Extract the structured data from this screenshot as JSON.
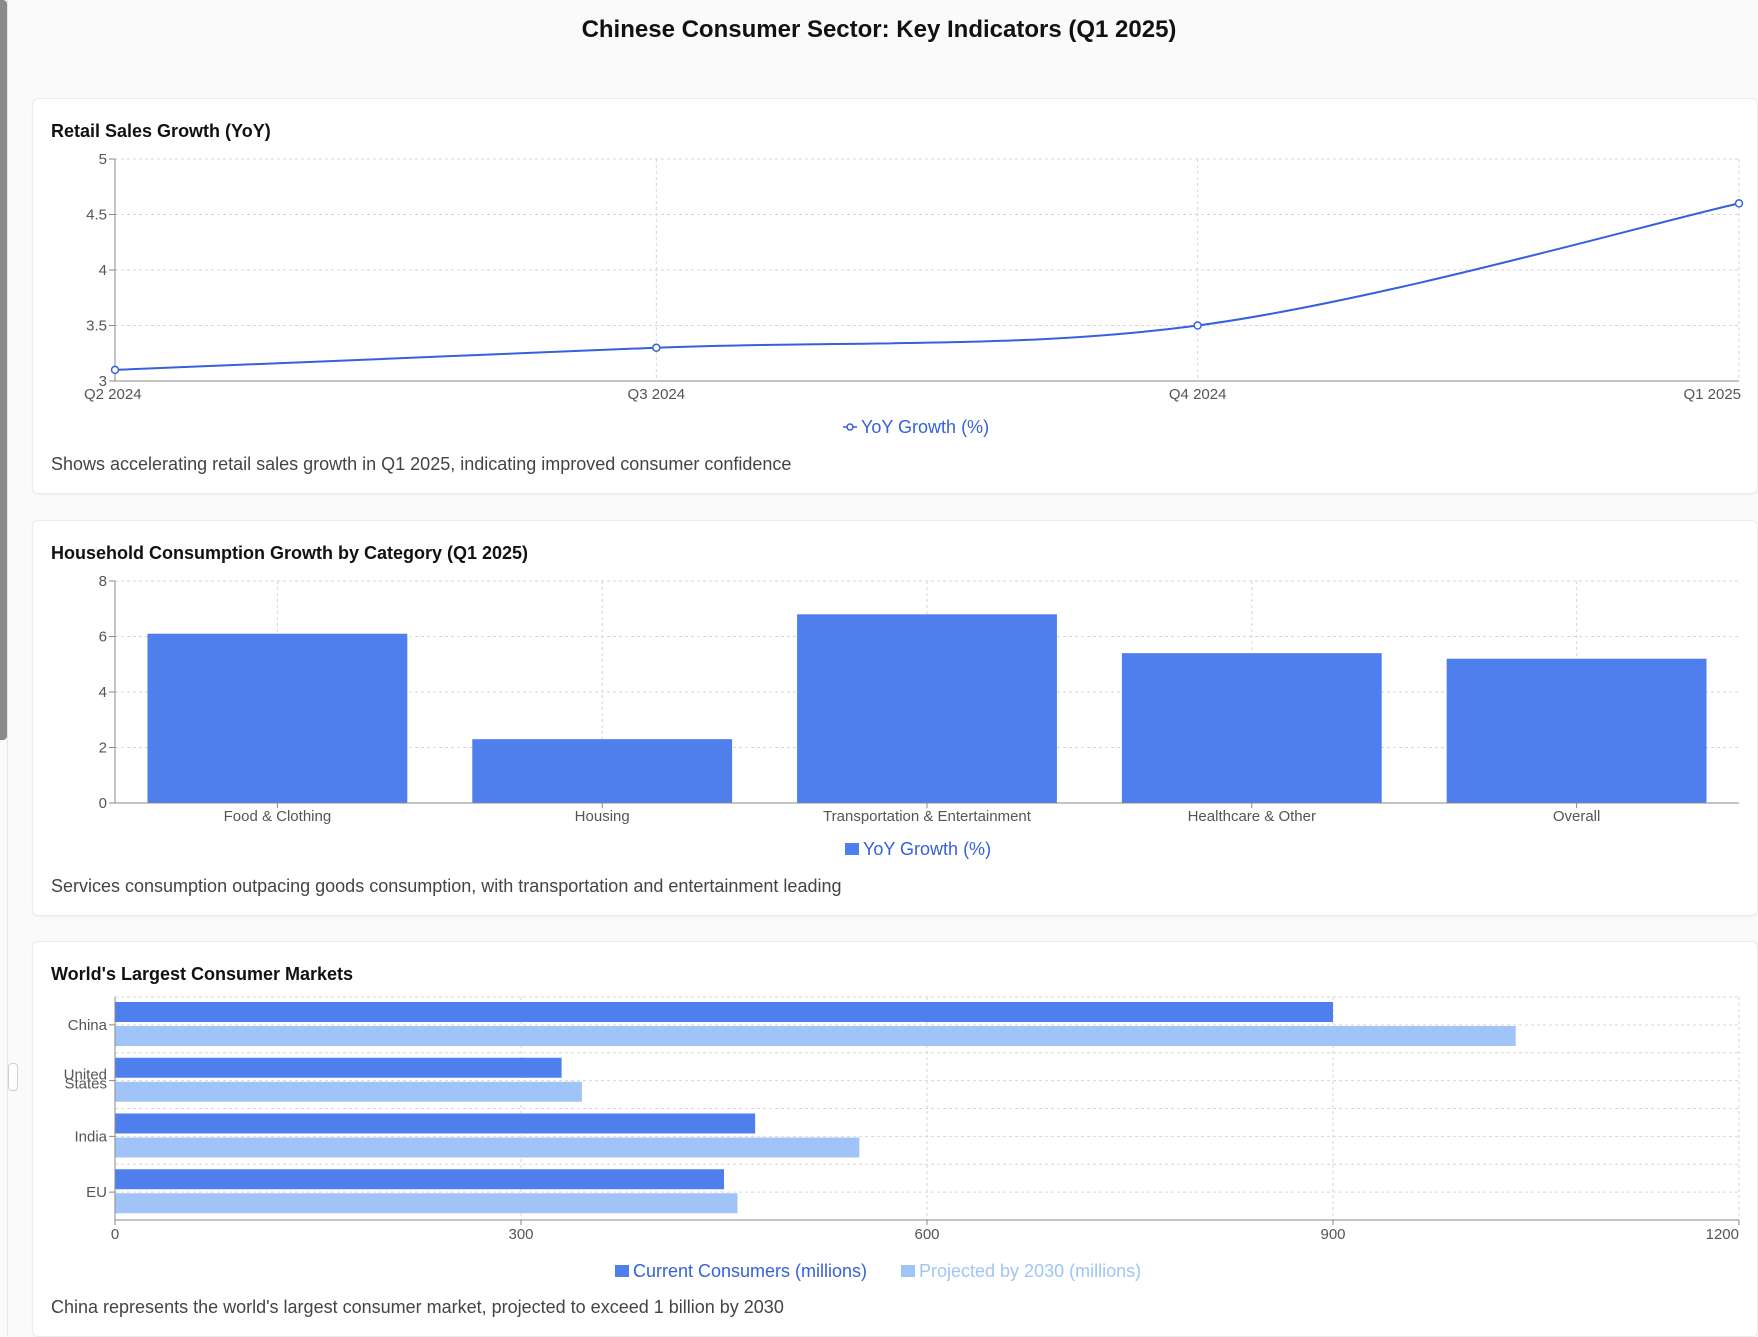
{
  "page": {
    "title": "Chinese Consumer Sector: Key Indicators (Q1 2025)"
  },
  "colors": {
    "primary": "#4e7fec",
    "primary_line": "#3660dc",
    "projected": "#a1c4f8",
    "grid": "#d6d6d6",
    "axis": "#888888"
  },
  "chart_data": [
    {
      "type": "line",
      "title": "Retail Sales Growth (YoY)",
      "categories": [
        "Q2 2024",
        "Q3 2024",
        "Q4 2024",
        "Q1 2025"
      ],
      "series": [
        {
          "name": "YoY Growth (%)",
          "values": [
            3.1,
            3.3,
            3.5,
            4.6
          ]
        }
      ],
      "ylim": [
        3,
        5
      ],
      "yticks": [
        "3",
        "3.5",
        "4",
        "4.5",
        "5"
      ],
      "grid": true,
      "legend": "bottom",
      "description": "Shows accelerating retail sales growth in Q1 2025, indicating improved consumer confidence"
    },
    {
      "type": "bar",
      "title": "Household Consumption Growth by Category (Q1 2025)",
      "categories": [
        "Food & Clothing",
        "Housing",
        "Transportation & Entertainment",
        "Healthcare & Other",
        "Overall"
      ],
      "series": [
        {
          "name": "YoY Growth (%)",
          "values": [
            6.1,
            2.3,
            6.8,
            5.4,
            5.2
          ]
        }
      ],
      "ylim": [
        0,
        8
      ],
      "yticks": [
        "0",
        "2",
        "4",
        "6",
        "8"
      ],
      "grid": true,
      "legend": "bottom",
      "description": "Services consumption outpacing goods consumption, with transportation and entertainment leading"
    },
    {
      "type": "bar",
      "orientation": "horizontal",
      "title": "World's Largest Consumer Markets",
      "categories": [
        "China",
        "United States",
        "India",
        "EU"
      ],
      "series": [
        {
          "name": "Current Consumers (millions)",
          "values": [
            900,
            330,
            473,
            450
          ]
        },
        {
          "name": "Projected by 2030 (millions)",
          "values": [
            1035,
            345,
            550,
            460
          ]
        }
      ],
      "xlim": [
        0,
        1200
      ],
      "xticks": [
        "0",
        "300",
        "600",
        "900",
        "1200"
      ],
      "grid": true,
      "legend": "bottom",
      "description": "China represents the world's largest consumer market, projected to exceed 1 billion by 2030"
    }
  ]
}
